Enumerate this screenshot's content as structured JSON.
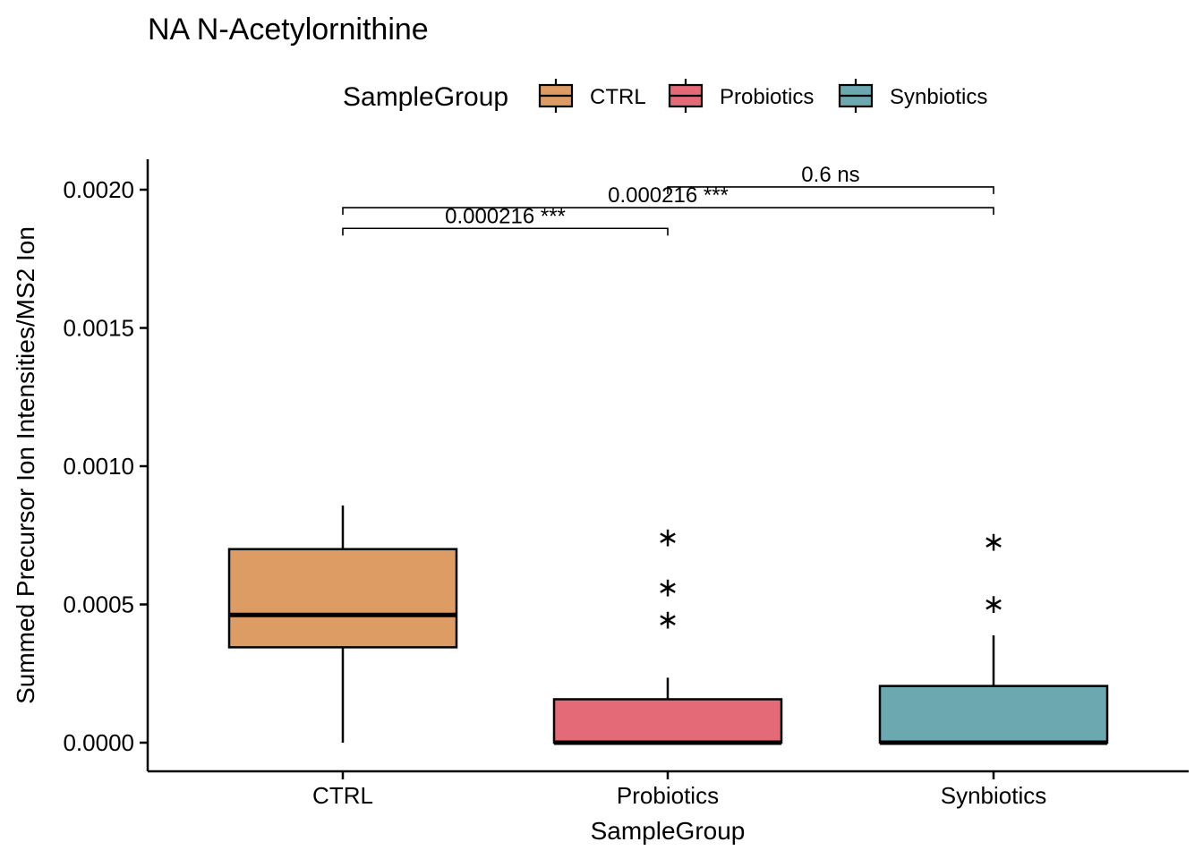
{
  "chart_data": {
    "type": "box",
    "title": "NA N-Acetylornithine",
    "xlabel": "SampleGroup",
    "ylabel": "Summed Precursor Ion Intensities/MS2 Ion",
    "ylim": [
      -0.0001,
      0.0021
    ],
    "y_ticks": [
      "0.0000",
      "0.0005",
      "0.0010",
      "0.0015",
      "0.0020"
    ],
    "y_tick_values": [
      0,
      0.0005,
      0.001,
      0.0015,
      0.002
    ],
    "categories": [
      "CTRL",
      "Probiotics",
      "Synbiotics"
    ],
    "legend": {
      "title": "SampleGroup",
      "position": "top"
    },
    "grid": false,
    "series": [
      {
        "name": "CTRL",
        "color": "#DD9C63",
        "min": 0.0,
        "q1": 0.000345,
        "median": 0.000462,
        "q3": 0.0007,
        "max": 0.000858,
        "outliers": []
      },
      {
        "name": "Probiotics",
        "color": "#E46A78",
        "min": 0.0,
        "q1": 0.0,
        "median": 0.0,
        "q3": 0.000157,
        "max": 0.000235,
        "outliers": [
          0.000458,
          0.000575,
          0.000755
        ]
      },
      {
        "name": "Synbiotics",
        "color": "#6BA8B0",
        "min": 0.0,
        "q1": 0.0,
        "median": 0.0,
        "q3": 0.000205,
        "max": 0.000388,
        "outliers": [
          0.000515,
          0.00074
        ]
      }
    ],
    "comparisons": [
      {
        "group1": "CTRL",
        "group2": "Probiotics",
        "label": "0.000216 ***",
        "y": 0.00186
      },
      {
        "group1": "CTRL",
        "group2": "Synbiotics",
        "label": "0.000216 ***",
        "y": 0.001935
      },
      {
        "group1": "Probiotics",
        "group2": "Synbiotics",
        "label": "0.6 ns",
        "y": 0.00201
      }
    ]
  }
}
